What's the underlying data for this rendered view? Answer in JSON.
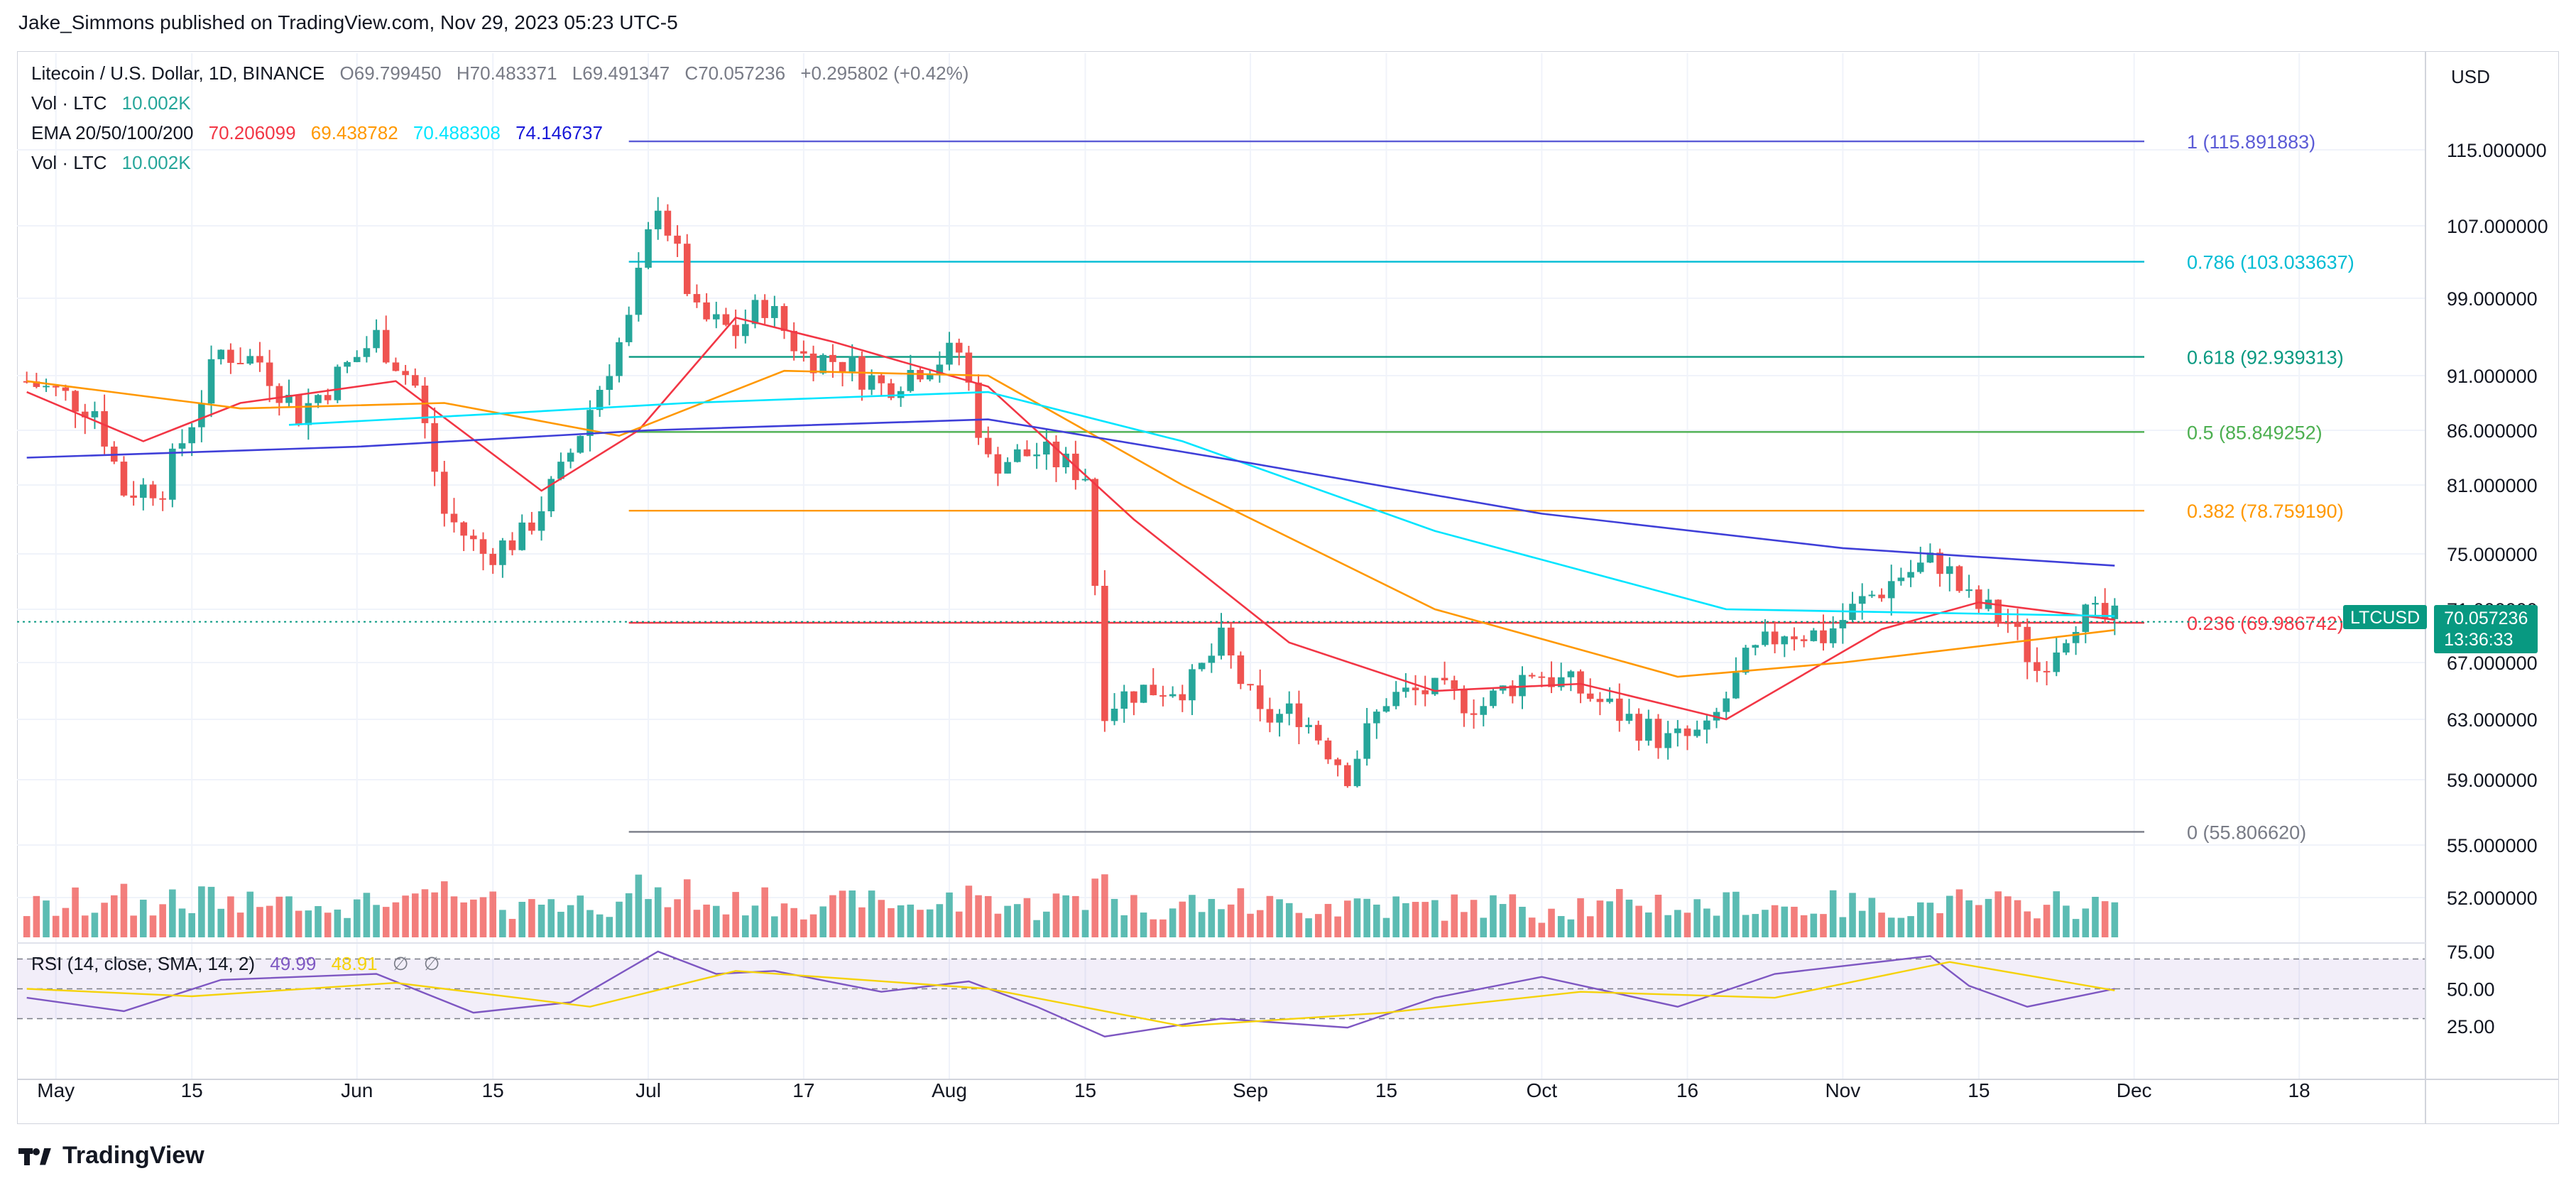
{
  "header": {
    "publisher_line": "Jake_Simmons published on TradingView.com, Nov 29, 2023 05:23 UTC-5"
  },
  "legend": {
    "symbol": "Litecoin / U.S. Dollar, 1D, BINANCE",
    "open_label": "O",
    "open": "69.799450",
    "high_label": "H",
    "high": "70.483371",
    "low_label": "L",
    "low": "69.491347",
    "close_label": "C",
    "close": "70.057236",
    "change": "+0.295802 (+0.42%)",
    "vol_label": "Vol · LTC",
    "vol_value": "10.002K",
    "ema_label": "EMA 20/50/100/200",
    "ema20": "70.206099",
    "ema50": "69.438782",
    "ema100": "70.488308",
    "ema200": "74.146737",
    "vol2_label": "Vol · LTC",
    "vol2_value": "10.002K",
    "rsi_label": "RSI (14, close, SMA, 14, 2)",
    "rsi_value": "49.99",
    "rsi_sma_value": "48.91",
    "rsi_na1": "∅",
    "rsi_na2": "∅"
  },
  "axis": {
    "currency": "USD"
  },
  "price_tag": {
    "symbol": "LTCUSD",
    "price": "70.057236",
    "countdown": "13:36:33"
  },
  "colors": {
    "up": "#26a69a",
    "down": "#ef5350",
    "ema20": "#f23645",
    "ema50": "#ff9800",
    "ema100": "#00e5ff",
    "ema200": "#3f3fd8",
    "fib1": "#5b5bd6",
    "fib786": "#00bcd4",
    "fib618": "#089981",
    "fib5": "#4caf50",
    "fib382": "#ff9800",
    "fib236": "#f23645",
    "fib0": "#787b86",
    "rsi": "#7e57c2",
    "rsi_sma": "#f5d20a"
  },
  "footer": {
    "brand": "TradingView"
  },
  "chart_data": [
    {
      "type": "candlestick",
      "title": "Litecoin / U.S. Dollar, 1D, BINANCE",
      "y_axis_ticks": [
        115,
        107,
        99,
        91,
        86,
        81,
        75,
        71,
        67,
        63,
        59,
        55,
        52
      ],
      "y_axis_tick_labels": [
        "115.000000",
        "107.000000",
        "99.000000",
        "91.000000",
        "86.000000",
        "81.000000",
        "75.000000",
        "71.000000",
        "67.000000",
        "63.000000",
        "59.000000",
        "55.000000",
        "52.000000"
      ],
      "x_axis_tick_labels": [
        "May",
        "15",
        "Jun",
        "15",
        "Jul",
        "17",
        "Aug",
        "15",
        "Sep",
        "15",
        "Oct",
        "16",
        "Nov",
        "15",
        "Dec",
        "18"
      ],
      "x_axis_tick_dates": [
        "2023-05-01",
        "2023-05-15",
        "2023-06-01",
        "2023-06-15",
        "2023-07-01",
        "2023-07-17",
        "2023-08-01",
        "2023-08-15",
        "2023-09-01",
        "2023-09-15",
        "2023-10-01",
        "2023-10-16",
        "2023-11-01",
        "2023-11-15",
        "2023-12-01",
        "2023-12-18"
      ],
      "fib_levels": [
        {
          "ratio": "1",
          "label": "1 (115.891883)",
          "value": 115.891883
        },
        {
          "ratio": "0.786",
          "label": "0.786 (103.033637)",
          "value": 103.033637
        },
        {
          "ratio": "0.618",
          "label": "0.618 (92.939313)",
          "value": 92.939313
        },
        {
          "ratio": "0.5",
          "label": "0.5 (85.849252)",
          "value": 85.849252
        },
        {
          "ratio": "0.382",
          "label": "0.382 (78.759190)",
          "value": 78.75919
        },
        {
          "ratio": "0.236",
          "label": "0.236 (69.986742)",
          "value": 69.986742
        },
        {
          "ratio": "0",
          "label": "0 (55.806620)",
          "value": 55.80662
        }
      ],
      "fib_start_date": "2023-06-29",
      "closes": [
        {
          "d": "2023-04-28",
          "c": 90.5
        },
        {
          "d": "2023-05-05",
          "c": 88.0
        },
        {
          "d": "2023-05-08",
          "c": 80.5
        },
        {
          "d": "2023-05-12",
          "c": 81.0
        },
        {
          "d": "2023-05-15",
          "c": 87.0
        },
        {
          "d": "2023-05-18",
          "c": 93.5
        },
        {
          "d": "2023-05-22",
          "c": 92.5
        },
        {
          "d": "2023-05-26",
          "c": 87.5
        },
        {
          "d": "2023-05-30",
          "c": 91.0
        },
        {
          "d": "2023-06-03",
          "c": 95.0
        },
        {
          "d": "2023-06-07",
          "c": 90.0
        },
        {
          "d": "2023-06-10",
          "c": 78.5
        },
        {
          "d": "2023-06-14",
          "c": 75.0
        },
        {
          "d": "2023-06-18",
          "c": 76.5
        },
        {
          "d": "2023-06-22",
          "c": 82.0
        },
        {
          "d": "2023-06-26",
          "c": 90.0
        },
        {
          "d": "2023-06-29",
          "c": 96.5
        },
        {
          "d": "2023-07-02",
          "c": 110.0
        },
        {
          "d": "2023-07-06",
          "c": 97.0
        },
        {
          "d": "2023-07-10",
          "c": 95.5
        },
        {
          "d": "2023-07-13",
          "c": 98.5
        },
        {
          "d": "2023-07-17",
          "c": 93.0
        },
        {
          "d": "2023-07-21",
          "c": 92.5
        },
        {
          "d": "2023-07-25",
          "c": 90.0
        },
        {
          "d": "2023-07-29",
          "c": 92.0
        },
        {
          "d": "2023-08-02",
          "c": 93.5
        },
        {
          "d": "2023-08-05",
          "c": 83.0
        },
        {
          "d": "2023-08-10",
          "c": 84.0
        },
        {
          "d": "2023-08-15",
          "c": 82.0
        },
        {
          "d": "2023-08-17",
          "c": 64.0
        },
        {
          "d": "2023-08-20",
          "c": 65.0
        },
        {
          "d": "2023-08-26",
          "c": 65.5
        },
        {
          "d": "2023-08-29",
          "c": 68.5
        },
        {
          "d": "2023-09-02",
          "c": 63.0
        },
        {
          "d": "2023-09-06",
          "c": 63.5
        },
        {
          "d": "2023-09-11",
          "c": 59.5
        },
        {
          "d": "2023-09-15",
          "c": 64.5
        },
        {
          "d": "2023-09-19",
          "c": 65.0
        },
        {
          "d": "2023-09-25",
          "c": 64.0
        },
        {
          "d": "2023-09-30",
          "c": 66.5
        },
        {
          "d": "2023-10-05",
          "c": 65.0
        },
        {
          "d": "2023-10-10",
          "c": 63.0
        },
        {
          "d": "2023-10-14",
          "c": 61.5
        },
        {
          "d": "2023-10-18",
          "c": 62.0
        },
        {
          "d": "2023-10-22",
          "c": 67.0
        },
        {
          "d": "2023-10-26",
          "c": 69.5
        },
        {
          "d": "2023-10-30",
          "c": 69.0
        },
        {
          "d": "2023-11-03",
          "c": 71.5
        },
        {
          "d": "2023-11-07",
          "c": 73.5
        },
        {
          "d": "2023-11-11",
          "c": 74.5
        },
        {
          "d": "2023-11-14",
          "c": 71.5
        },
        {
          "d": "2023-11-18",
          "c": 70.0
        },
        {
          "d": "2023-11-21",
          "c": 66.5
        },
        {
          "d": "2023-11-25",
          "c": 70.5
        },
        {
          "d": "2023-11-29",
          "c": 70.06
        }
      ],
      "ema_series": [
        {
          "name": "EMA 20",
          "values": [
            {
              "d": "2023-04-28",
              "v": 89.5
            },
            {
              "d": "2023-05-10",
              "v": 85.0
            },
            {
              "d": "2023-05-20",
              "v": 88.5
            },
            {
              "d": "2023-06-05",
              "v": 90.5
            },
            {
              "d": "2023-06-20",
              "v": 80.5
            },
            {
              "d": "2023-06-30",
              "v": 86.0
            },
            {
              "d": "2023-07-10",
              "v": 97.0
            },
            {
              "d": "2023-07-20",
              "v": 94.5
            },
            {
              "d": "2023-08-05",
              "v": 90.0
            },
            {
              "d": "2023-08-20",
              "v": 78.0
            },
            {
              "d": "2023-09-05",
              "v": 68.5
            },
            {
              "d": "2023-09-20",
              "v": 65.0
            },
            {
              "d": "2023-10-05",
              "v": 65.5
            },
            {
              "d": "2023-10-20",
              "v": 63.0
            },
            {
              "d": "2023-11-05",
              "v": 69.5
            },
            {
              "d": "2023-11-15",
              "v": 71.5
            },
            {
              "d": "2023-11-29",
              "v": 70.21
            }
          ]
        },
        {
          "name": "EMA 50",
          "values": [
            {
              "d": "2023-04-28",
              "v": 90.5
            },
            {
              "d": "2023-05-20",
              "v": 88.0
            },
            {
              "d": "2023-06-10",
              "v": 88.5
            },
            {
              "d": "2023-06-28",
              "v": 85.5
            },
            {
              "d": "2023-07-15",
              "v": 91.5
            },
            {
              "d": "2023-08-05",
              "v": 91.0
            },
            {
              "d": "2023-08-25",
              "v": 81.0
            },
            {
              "d": "2023-09-20",
              "v": 71.0
            },
            {
              "d": "2023-10-15",
              "v": 66.0
            },
            {
              "d": "2023-11-01",
              "v": 67.0
            },
            {
              "d": "2023-11-29",
              "v": 69.44
            }
          ]
        },
        {
          "name": "EMA 100",
          "values": [
            {
              "d": "2023-05-25",
              "v": 86.5
            },
            {
              "d": "2023-06-15",
              "v": 87.5
            },
            {
              "d": "2023-07-05",
              "v": 88.5
            },
            {
              "d": "2023-08-05",
              "v": 89.5
            },
            {
              "d": "2023-08-25",
              "v": 85.0
            },
            {
              "d": "2023-09-20",
              "v": 77.0
            },
            {
              "d": "2023-10-20",
              "v": 71.0
            },
            {
              "d": "2023-11-29",
              "v": 70.49
            }
          ]
        },
        {
          "name": "EMA 200",
          "values": [
            {
              "d": "2023-04-28",
              "v": 83.5
            },
            {
              "d": "2023-06-01",
              "v": 84.5
            },
            {
              "d": "2023-07-01",
              "v": 86.0
            },
            {
              "d": "2023-08-05",
              "v": 87.0
            },
            {
              "d": "2023-09-01",
              "v": 83.0
            },
            {
              "d": "2023-10-01",
              "v": 78.5
            },
            {
              "d": "2023-11-01",
              "v": 75.5
            },
            {
              "d": "2023-11-29",
              "v": 74.15
            }
          ]
        }
      ]
    },
    {
      "type": "line",
      "title": "RSI (14, close, SMA, 14, 2)",
      "y_axis_tick_labels": [
        "75.00",
        "50.00",
        "25.00"
      ],
      "y_axis_ticks": [
        75,
        50,
        25
      ],
      "bands": [
        30,
        50,
        70
      ],
      "series": [
        {
          "name": "RSI",
          "values": [
            {
              "d": "2023-04-28",
              "v": 44
            },
            {
              "d": "2023-05-08",
              "v": 35
            },
            {
              "d": "2023-05-18",
              "v": 56
            },
            {
              "d": "2023-06-03",
              "v": 60
            },
            {
              "d": "2023-06-13",
              "v": 34
            },
            {
              "d": "2023-06-23",
              "v": 41
            },
            {
              "d": "2023-07-02",
              "v": 75
            },
            {
              "d": "2023-07-08",
              "v": 60
            },
            {
              "d": "2023-07-14",
              "v": 62
            },
            {
              "d": "2023-07-25",
              "v": 48
            },
            {
              "d": "2023-08-03",
              "v": 55
            },
            {
              "d": "2023-08-10",
              "v": 38
            },
            {
              "d": "2023-08-17",
              "v": 18
            },
            {
              "d": "2023-08-29",
              "v": 30
            },
            {
              "d": "2023-09-11",
              "v": 24
            },
            {
              "d": "2023-09-20",
              "v": 44
            },
            {
              "d": "2023-10-01",
              "v": 58
            },
            {
              "d": "2023-10-15",
              "v": 38
            },
            {
              "d": "2023-10-25",
              "v": 60
            },
            {
              "d": "2023-11-10",
              "v": 72
            },
            {
              "d": "2023-11-14",
              "v": 52
            },
            {
              "d": "2023-11-20",
              "v": 38
            },
            {
              "d": "2023-11-29",
              "v": 49.99
            }
          ]
        },
        {
          "name": "SMA",
          "values": [
            {
              "d": "2023-04-28",
              "v": 50
            },
            {
              "d": "2023-05-15",
              "v": 45
            },
            {
              "d": "2023-06-05",
              "v": 54
            },
            {
              "d": "2023-06-25",
              "v": 38
            },
            {
              "d": "2023-07-10",
              "v": 62
            },
            {
              "d": "2023-08-05",
              "v": 50
            },
            {
              "d": "2023-08-25",
              "v": 25
            },
            {
              "d": "2023-09-15",
              "v": 34
            },
            {
              "d": "2023-10-05",
              "v": 48
            },
            {
              "d": "2023-10-25",
              "v": 44
            },
            {
              "d": "2023-11-12",
              "v": 68
            },
            {
              "d": "2023-11-29",
              "v": 48.91
            }
          ]
        }
      ]
    }
  ]
}
